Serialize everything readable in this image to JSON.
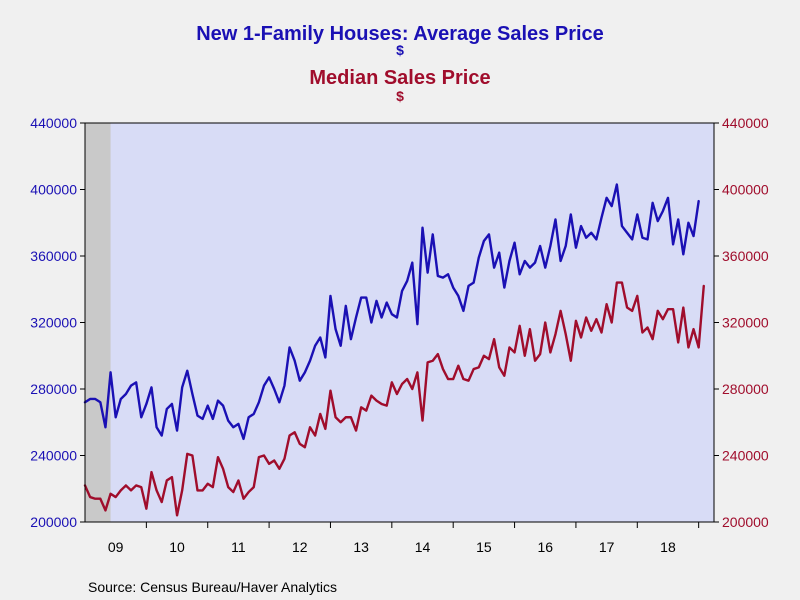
{
  "colors": {
    "average": "#1a10b4",
    "median": "#a00d2c",
    "plot_bg": "#d8dcf6",
    "page_bg": "#f0f0f0",
    "recession_band": "#c9c9c9",
    "text": "#000000"
  },
  "source": "Source:  Census Bureau/Haver Analytics",
  "chart_data": {
    "type": "line",
    "title_line1": "New 1-Family Houses: Average Sales Price",
    "title_unit1": "$",
    "title_line2": "Median Sales Price",
    "title_unit2": "$",
    "x_tick_labels": [
      "09",
      "10",
      "11",
      "12",
      "13",
      "14",
      "15",
      "16",
      "17",
      "18"
    ],
    "y_tick_labels": [
      "440000",
      "400000",
      "360000",
      "320000",
      "280000",
      "240000",
      "200000"
    ],
    "ylim": [
      200000,
      440000
    ],
    "xlim": [
      "2009-01",
      "2019-04"
    ],
    "grid": false,
    "legend": "none",
    "series": [
      {
        "name": "New 1-Family Houses: Average Sales Price",
        "axis": "left",
        "color": "#1a10b4",
        "points": [
          [
            "2009-01",
            272000
          ],
          [
            "2009-02",
            274000
          ],
          [
            "2009-03",
            274000
          ],
          [
            "2009-04",
            272000
          ],
          [
            "2009-05",
            257000
          ],
          [
            "2009-06",
            290000
          ],
          [
            "2009-07",
            263000
          ],
          [
            "2009-08",
            274000
          ],
          [
            "2009-09",
            277000
          ],
          [
            "2009-10",
            282000
          ],
          [
            "2009-11",
            284000
          ],
          [
            "2009-12",
            263000
          ],
          [
            "2010-01",
            271000
          ],
          [
            "2010-02",
            281000
          ],
          [
            "2010-03",
            257000
          ],
          [
            "2010-04",
            252000
          ],
          [
            "2010-05",
            268000
          ],
          [
            "2010-06",
            271000
          ],
          [
            "2010-07",
            255000
          ],
          [
            "2010-08",
            281000
          ],
          [
            "2010-09",
            291000
          ],
          [
            "2010-10",
            277000
          ],
          [
            "2010-11",
            264000
          ],
          [
            "2010-12",
            262000
          ],
          [
            "2011-01",
            270000
          ],
          [
            "2011-02",
            262000
          ],
          [
            "2011-03",
            273000
          ],
          [
            "2011-04",
            270000
          ],
          [
            "2011-05",
            261000
          ],
          [
            "2011-06",
            257000
          ],
          [
            "2011-07",
            259000
          ],
          [
            "2011-08",
            250000
          ],
          [
            "2011-09",
            263000
          ],
          [
            "2011-10",
            265000
          ],
          [
            "2011-11",
            272000
          ],
          [
            "2011-12",
            282000
          ],
          [
            "2012-01",
            287000
          ],
          [
            "2012-02",
            280000
          ],
          [
            "2012-03",
            272000
          ],
          [
            "2012-04",
            282000
          ],
          [
            "2012-05",
            305000
          ],
          [
            "2012-06",
            297000
          ],
          [
            "2012-07",
            285000
          ],
          [
            "2012-08",
            290000
          ],
          [
            "2012-09",
            297000
          ],
          [
            "2012-10",
            306000
          ],
          [
            "2012-11",
            311000
          ],
          [
            "2012-12",
            299000
          ],
          [
            "2013-01",
            336000
          ],
          [
            "2013-02",
            316000
          ],
          [
            "2013-03",
            306000
          ],
          [
            "2013-04",
            330000
          ],
          [
            "2013-05",
            310000
          ],
          [
            "2013-06",
            323000
          ],
          [
            "2013-07",
            335000
          ],
          [
            "2013-08",
            335000
          ],
          [
            "2013-09",
            320000
          ],
          [
            "2013-10",
            333000
          ],
          [
            "2013-11",
            323000
          ],
          [
            "2013-12",
            332000
          ],
          [
            "2014-01",
            325000
          ],
          [
            "2014-02",
            323000
          ],
          [
            "2014-03",
            339000
          ],
          [
            "2014-04",
            345000
          ],
          [
            "2014-05",
            356000
          ],
          [
            "2014-06",
            319000
          ],
          [
            "2014-07",
            377000
          ],
          [
            "2014-08",
            350000
          ],
          [
            "2014-09",
            373000
          ],
          [
            "2014-10",
            348000
          ],
          [
            "2014-11",
            347000
          ],
          [
            "2014-12",
            349000
          ],
          [
            "2015-01",
            341000
          ],
          [
            "2015-02",
            336000
          ],
          [
            "2015-03",
            327000
          ],
          [
            "2015-04",
            342000
          ],
          [
            "2015-05",
            344000
          ],
          [
            "2015-06",
            359000
          ],
          [
            "2015-07",
            369000
          ],
          [
            "2015-08",
            373000
          ],
          [
            "2015-09",
            353000
          ],
          [
            "2015-10",
            362000
          ],
          [
            "2015-11",
            341000
          ],
          [
            "2015-12",
            357000
          ],
          [
            "2016-01",
            368000
          ],
          [
            "2016-02",
            349000
          ],
          [
            "2016-03",
            357000
          ],
          [
            "2016-04",
            353000
          ],
          [
            "2016-05",
            356000
          ],
          [
            "2016-06",
            366000
          ],
          [
            "2016-07",
            353000
          ],
          [
            "2016-08",
            366000
          ],
          [
            "2016-09",
            382000
          ],
          [
            "2016-10",
            357000
          ],
          [
            "2016-11",
            366000
          ],
          [
            "2016-12",
            385000
          ],
          [
            "2017-01",
            365000
          ],
          [
            "2017-02",
            378000
          ],
          [
            "2017-03",
            371000
          ],
          [
            "2017-04",
            374000
          ],
          [
            "2017-05",
            370000
          ],
          [
            "2017-06",
            383000
          ],
          [
            "2017-07",
            395000
          ],
          [
            "2017-08",
            390000
          ],
          [
            "2017-09",
            403000
          ],
          [
            "2017-10",
            378000
          ],
          [
            "2017-11",
            374000
          ],
          [
            "2017-12",
            370000
          ],
          [
            "2018-01",
            385000
          ],
          [
            "2018-02",
            371000
          ],
          [
            "2018-03",
            370000
          ],
          [
            "2018-04",
            392000
          ],
          [
            "2018-05",
            381000
          ],
          [
            "2018-06",
            387000
          ],
          [
            "2018-07",
            395000
          ],
          [
            "2018-08",
            367000
          ],
          [
            "2018-09",
            382000
          ],
          [
            "2018-10",
            361000
          ],
          [
            "2018-11",
            380000
          ],
          [
            "2018-12",
            372000
          ],
          [
            "2019-01",
            393000
          ]
        ]
      },
      {
        "name": "Median Sales Price",
        "axis": "right",
        "color": "#a00d2c",
        "points": [
          [
            "2009-01",
            222000
          ],
          [
            "2009-02",
            215000
          ],
          [
            "2009-03",
            214000
          ],
          [
            "2009-04",
            214000
          ],
          [
            "2009-05",
            207000
          ],
          [
            "2009-06",
            217000
          ],
          [
            "2009-07",
            215000
          ],
          [
            "2009-08",
            219000
          ],
          [
            "2009-09",
            222000
          ],
          [
            "2009-10",
            219000
          ],
          [
            "2009-11",
            222000
          ],
          [
            "2009-12",
            221000
          ],
          [
            "2010-01",
            208000
          ],
          [
            "2010-02",
            230000
          ],
          [
            "2010-03",
            219000
          ],
          [
            "2010-04",
            212000
          ],
          [
            "2010-05",
            225000
          ],
          [
            "2010-06",
            227000
          ],
          [
            "2010-07",
            204000
          ],
          [
            "2010-08",
            219000
          ],
          [
            "2010-09",
            241000
          ],
          [
            "2010-10",
            240000
          ],
          [
            "2010-11",
            219000
          ],
          [
            "2010-12",
            219000
          ],
          [
            "2011-01",
            223000
          ],
          [
            "2011-02",
            221000
          ],
          [
            "2011-03",
            239000
          ],
          [
            "2011-04",
            232000
          ],
          [
            "2011-05",
            221000
          ],
          [
            "2011-06",
            218000
          ],
          [
            "2011-07",
            225000
          ],
          [
            "2011-08",
            214000
          ],
          [
            "2011-09",
            218000
          ],
          [
            "2011-10",
            221000
          ],
          [
            "2011-11",
            239000
          ],
          [
            "2011-12",
            240000
          ],
          [
            "2012-01",
            235000
          ],
          [
            "2012-02",
            237000
          ],
          [
            "2012-03",
            232000
          ],
          [
            "2012-04",
            238000
          ],
          [
            "2012-05",
            252000
          ],
          [
            "2012-06",
            254000
          ],
          [
            "2012-07",
            247000
          ],
          [
            "2012-08",
            245000
          ],
          [
            "2012-09",
            257000
          ],
          [
            "2012-10",
            252000
          ],
          [
            "2012-11",
            265000
          ],
          [
            "2012-12",
            256000
          ],
          [
            "2013-01",
            279000
          ],
          [
            "2013-02",
            263000
          ],
          [
            "2013-03",
            260000
          ],
          [
            "2013-04",
            263000
          ],
          [
            "2013-05",
            263000
          ],
          [
            "2013-06",
            255000
          ],
          [
            "2013-07",
            269000
          ],
          [
            "2013-08",
            267000
          ],
          [
            "2013-09",
            276000
          ],
          [
            "2013-10",
            273000
          ],
          [
            "2013-11",
            271000
          ],
          [
            "2013-12",
            270000
          ],
          [
            "2014-01",
            284000
          ],
          [
            "2014-02",
            277000
          ],
          [
            "2014-03",
            283000
          ],
          [
            "2014-04",
            286000
          ],
          [
            "2014-05",
            280000
          ],
          [
            "2014-06",
            290000
          ],
          [
            "2014-07",
            261000
          ],
          [
            "2014-08",
            296000
          ],
          [
            "2014-09",
            297000
          ],
          [
            "2014-10",
            301000
          ],
          [
            "2014-11",
            292000
          ],
          [
            "2014-12",
            286000
          ],
          [
            "2015-01",
            286000
          ],
          [
            "2015-02",
            294000
          ],
          [
            "2015-03",
            286000
          ],
          [
            "2015-04",
            285000
          ],
          [
            "2015-05",
            292000
          ],
          [
            "2015-06",
            293000
          ],
          [
            "2015-07",
            300000
          ],
          [
            "2015-08",
            298000
          ],
          [
            "2015-09",
            310000
          ],
          [
            "2015-10",
            293000
          ],
          [
            "2015-11",
            288000
          ],
          [
            "2015-12",
            305000
          ],
          [
            "2016-01",
            302000
          ],
          [
            "2016-02",
            318000
          ],
          [
            "2016-03",
            300000
          ],
          [
            "2016-04",
            316000
          ],
          [
            "2016-05",
            297000
          ],
          [
            "2016-06",
            301000
          ],
          [
            "2016-07",
            320000
          ],
          [
            "2016-08",
            302000
          ],
          [
            "2016-09",
            313000
          ],
          [
            "2016-10",
            327000
          ],
          [
            "2016-11",
            313000
          ],
          [
            "2016-12",
            297000
          ],
          [
            "2017-01",
            321000
          ],
          [
            "2017-02",
            311000
          ],
          [
            "2017-03",
            323000
          ],
          [
            "2017-04",
            315000
          ],
          [
            "2017-05",
            322000
          ],
          [
            "2017-06",
            314000
          ],
          [
            "2017-07",
            331000
          ],
          [
            "2017-08",
            320000
          ],
          [
            "2017-09",
            344000
          ],
          [
            "2017-10",
            344000
          ],
          [
            "2017-11",
            329000
          ],
          [
            "2017-12",
            327000
          ],
          [
            "2018-01",
            336000
          ],
          [
            "2018-02",
            314000
          ],
          [
            "2018-03",
            317000
          ],
          [
            "2018-04",
            310000
          ],
          [
            "2018-05",
            327000
          ],
          [
            "2018-06",
            322000
          ],
          [
            "2018-07",
            328000
          ],
          [
            "2018-08",
            328000
          ],
          [
            "2018-09",
            308000
          ],
          [
            "2018-10",
            329000
          ],
          [
            "2018-11",
            305000
          ],
          [
            "2018-12",
            316000
          ],
          [
            "2019-01",
            305000
          ],
          [
            "2019-02",
            342000
          ]
        ]
      }
    ],
    "shaded_band": {
      "start": "2009-01",
      "end": "2009-06",
      "color": "#c9c9c9"
    }
  }
}
